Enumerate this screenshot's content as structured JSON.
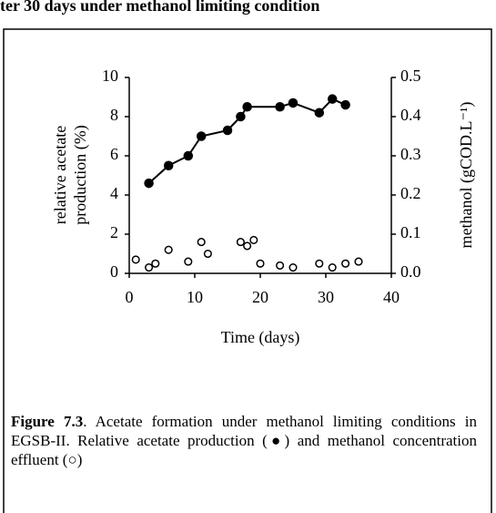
{
  "header_text": "ter 30 days under methanol limiting condition",
  "caption": {
    "label": "Figure 7.3",
    "text": ". Acetate formation under methanol limiting conditions in EGSB-II. Relative acetate production (●) and methanol concentration effluent (○)"
  },
  "chart_data": {
    "type": "scatter",
    "x_label": "Time (days)",
    "y_label": [
      "relative acetate",
      "production (%)"
    ],
    "y2_label": "methanol (gCOD.L⁻¹)",
    "xlim": [
      0,
      40
    ],
    "xticks": [
      0,
      10,
      20,
      30,
      40
    ],
    "ylim": [
      0,
      10
    ],
    "yticks": [
      0,
      2,
      4,
      6,
      8,
      10
    ],
    "y2lim": [
      0,
      0.5
    ],
    "y2ticks": [
      {
        "value": 0,
        "label": "0.0"
      },
      0.1,
      0.2,
      0.3,
      0.4,
      0.5
    ],
    "grid": false,
    "series": [
      {
        "color": "#000000",
        "marker": "filled",
        "line": true,
        "x": [
          3,
          6,
          9,
          11,
          15,
          17,
          18,
          23,
          25,
          29,
          31,
          33
        ],
        "values": [
          4.6,
          5.5,
          6.0,
          7.0,
          7.3,
          8.0,
          8.5,
          8.5,
          8.7,
          8.2,
          8.9,
          8.6
        ]
      },
      {
        "color": "#000000",
        "marker": "open",
        "line": false,
        "axis": "y2",
        "x": [
          1,
          3,
          4,
          6,
          9,
          11,
          12,
          17,
          18,
          19,
          20,
          23,
          25,
          29,
          31,
          33,
          35
        ],
        "values": [
          0.035,
          0.015,
          0.025,
          0.06,
          0.03,
          0.08,
          0.05,
          0.08,
          0.07,
          0.085,
          0.025,
          0.02,
          0.015,
          0.025,
          0.015,
          0.025,
          0.03
        ]
      }
    ]
  }
}
